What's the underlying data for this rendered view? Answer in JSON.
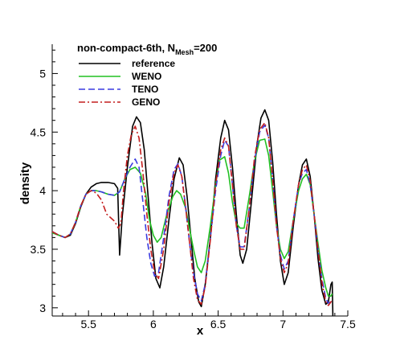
{
  "chart_data": {
    "type": "line",
    "xlabel": "x",
    "ylabel": "density",
    "xlim": [
      5.22,
      7.5
    ],
    "ylim": [
      2.93,
      5.25
    ],
    "x_ticks": [
      5.5,
      6,
      6.5,
      7,
      7.5
    ],
    "x_tick_labels": [
      "5.5",
      "6",
      "6.5",
      "7",
      "7.5"
    ],
    "y_ticks": [
      3,
      3.5,
      4,
      4.5,
      5
    ],
    "y_tick_labels": [
      "3",
      "3.5",
      "4",
      "4.5",
      "5"
    ],
    "grid": false,
    "legend": {
      "placement": "top-left",
      "title_main": "non-compact-6th, N",
      "title_sub": "Mesh",
      "title_tail": "=200"
    },
    "series": [
      {
        "name": "reference",
        "color": "#000000",
        "dash": "solid",
        "points": [
          [
            5.22,
            3.65
          ],
          [
            5.27,
            3.62
          ],
          [
            5.32,
            3.6
          ],
          [
            5.36,
            3.62
          ],
          [
            5.4,
            3.72
          ],
          [
            5.44,
            3.86
          ],
          [
            5.48,
            3.97
          ],
          [
            5.52,
            4.03
          ],
          [
            5.56,
            4.06
          ],
          [
            5.6,
            4.07
          ],
          [
            5.65,
            4.07
          ],
          [
            5.7,
            4.06
          ],
          [
            5.725,
            4.02
          ],
          [
            5.74,
            3.45
          ],
          [
            5.76,
            3.78
          ],
          [
            5.8,
            4.2
          ],
          [
            5.84,
            4.55
          ],
          [
            5.87,
            4.63
          ],
          [
            5.9,
            4.58
          ],
          [
            5.93,
            4.35
          ],
          [
            5.96,
            3.95
          ],
          [
            5.99,
            3.55
          ],
          [
            6.02,
            3.25
          ],
          [
            6.05,
            3.17
          ],
          [
            6.08,
            3.35
          ],
          [
            6.12,
            3.75
          ],
          [
            6.16,
            4.1
          ],
          [
            6.2,
            4.28
          ],
          [
            6.23,
            4.22
          ],
          [
            6.26,
            3.95
          ],
          [
            6.29,
            3.6
          ],
          [
            6.32,
            3.25
          ],
          [
            6.35,
            3.05
          ],
          [
            6.37,
            3.01
          ],
          [
            6.4,
            3.2
          ],
          [
            6.44,
            3.6
          ],
          [
            6.48,
            4.1
          ],
          [
            6.52,
            4.45
          ],
          [
            6.55,
            4.6
          ],
          [
            6.58,
            4.52
          ],
          [
            6.61,
            4.2
          ],
          [
            6.64,
            3.8
          ],
          [
            6.67,
            3.45
          ],
          [
            6.69,
            3.38
          ],
          [
            6.72,
            3.5
          ],
          [
            6.76,
            3.95
          ],
          [
            6.8,
            4.4
          ],
          [
            6.83,
            4.62
          ],
          [
            6.86,
            4.69
          ],
          [
            6.89,
            4.6
          ],
          [
            6.92,
            4.25
          ],
          [
            6.95,
            3.8
          ],
          [
            6.98,
            3.4
          ],
          [
            7.01,
            3.2
          ],
          [
            7.04,
            3.3
          ],
          [
            7.08,
            3.7
          ],
          [
            7.12,
            4.05
          ],
          [
            7.15,
            4.22
          ],
          [
            7.18,
            4.27
          ],
          [
            7.21,
            4.12
          ],
          [
            7.24,
            3.8
          ],
          [
            7.27,
            3.42
          ],
          [
            7.3,
            3.15
          ],
          [
            7.33,
            3.03
          ],
          [
            7.35,
            3.05
          ],
          [
            7.37,
            3.2
          ],
          [
            7.38,
            3.22
          ],
          [
            7.385,
            2.93
          ]
        ]
      },
      {
        "name": "WENO",
        "color": "#22c022",
        "dash": "solid",
        "points": [
          [
            5.22,
            3.64
          ],
          [
            5.27,
            3.62
          ],
          [
            5.32,
            3.6
          ],
          [
            5.36,
            3.63
          ],
          [
            5.4,
            3.73
          ],
          [
            5.44,
            3.87
          ],
          [
            5.48,
            3.97
          ],
          [
            5.52,
            4.0
          ],
          [
            5.56,
            4.0
          ],
          [
            5.6,
            3.99
          ],
          [
            5.65,
            3.97
          ],
          [
            5.7,
            3.96
          ],
          [
            5.74,
            3.99
          ],
          [
            5.78,
            4.1
          ],
          [
            5.82,
            4.18
          ],
          [
            5.86,
            4.2
          ],
          [
            5.9,
            4.15
          ],
          [
            5.94,
            3.98
          ],
          [
            5.97,
            3.75
          ],
          [
            6.0,
            3.62
          ],
          [
            6.03,
            3.56
          ],
          [
            6.06,
            3.6
          ],
          [
            6.1,
            3.78
          ],
          [
            6.15,
            3.95
          ],
          [
            6.18,
            4.0
          ],
          [
            6.21,
            3.97
          ],
          [
            6.25,
            3.85
          ],
          [
            6.28,
            3.67
          ],
          [
            6.31,
            3.5
          ],
          [
            6.34,
            3.35
          ],
          [
            6.37,
            3.3
          ],
          [
            6.4,
            3.4
          ],
          [
            6.44,
            3.7
          ],
          [
            6.48,
            4.05
          ],
          [
            6.51,
            4.26
          ],
          [
            6.55,
            4.29
          ],
          [
            6.58,
            4.15
          ],
          [
            6.61,
            3.9
          ],
          [
            6.64,
            3.72
          ],
          [
            6.67,
            3.68
          ],
          [
            6.7,
            3.68
          ],
          [
            6.74,
            3.95
          ],
          [
            6.78,
            4.25
          ],
          [
            6.82,
            4.43
          ],
          [
            6.86,
            4.44
          ],
          [
            6.89,
            4.3
          ],
          [
            6.92,
            4.0
          ],
          [
            6.95,
            3.7
          ],
          [
            6.98,
            3.5
          ],
          [
            7.01,
            3.42
          ],
          [
            7.04,
            3.48
          ],
          [
            7.08,
            3.75
          ],
          [
            7.12,
            4.0
          ],
          [
            7.15,
            4.1
          ],
          [
            7.18,
            4.14
          ],
          [
            7.21,
            4.05
          ],
          [
            7.24,
            3.8
          ],
          [
            7.27,
            3.55
          ],
          [
            7.3,
            3.32
          ],
          [
            7.33,
            3.17
          ],
          [
            7.35,
            3.1
          ],
          [
            7.37,
            3.1
          ],
          [
            7.38,
            3.12
          ]
        ]
      },
      {
        "name": "TENO",
        "color": "#3a3ae0",
        "dash": "8,4",
        "points": [
          [
            5.22,
            3.65
          ],
          [
            5.27,
            3.62
          ],
          [
            5.32,
            3.6
          ],
          [
            5.36,
            3.63
          ],
          [
            5.4,
            3.73
          ],
          [
            5.44,
            3.87
          ],
          [
            5.48,
            3.97
          ],
          [
            5.52,
            4.0
          ],
          [
            5.56,
            4.0
          ],
          [
            5.6,
            3.99
          ],
          [
            5.65,
            3.97
          ],
          [
            5.7,
            3.96
          ],
          [
            5.74,
            3.99
          ],
          [
            5.78,
            4.1
          ],
          [
            5.82,
            4.2
          ],
          [
            5.86,
            4.27
          ],
          [
            5.89,
            4.2
          ],
          [
            5.92,
            3.9
          ],
          [
            5.95,
            3.6
          ],
          [
            5.98,
            3.38
          ],
          [
            6.01,
            3.27
          ],
          [
            6.04,
            3.3
          ],
          [
            6.08,
            3.6
          ],
          [
            6.12,
            3.95
          ],
          [
            6.16,
            4.18
          ],
          [
            6.19,
            4.23
          ],
          [
            6.22,
            4.12
          ],
          [
            6.25,
            3.85
          ],
          [
            6.28,
            3.55
          ],
          [
            6.31,
            3.3
          ],
          [
            6.34,
            3.12
          ],
          [
            6.37,
            3.06
          ],
          [
            6.4,
            3.2
          ],
          [
            6.44,
            3.6
          ],
          [
            6.48,
            4.0
          ],
          [
            6.52,
            4.3
          ],
          [
            6.55,
            4.43
          ],
          [
            6.58,
            4.38
          ],
          [
            6.61,
            4.05
          ],
          [
            6.64,
            3.7
          ],
          [
            6.67,
            3.52
          ],
          [
            6.7,
            3.52
          ],
          [
            6.74,
            3.85
          ],
          [
            6.78,
            4.25
          ],
          [
            6.82,
            4.5
          ],
          [
            6.86,
            4.56
          ],
          [
            6.89,
            4.45
          ],
          [
            6.92,
            4.1
          ],
          [
            6.95,
            3.7
          ],
          [
            6.98,
            3.45
          ],
          [
            7.01,
            3.33
          ],
          [
            7.04,
            3.4
          ],
          [
            7.08,
            3.75
          ],
          [
            7.12,
            4.05
          ],
          [
            7.15,
            4.15
          ],
          [
            7.18,
            4.18
          ],
          [
            7.21,
            4.05
          ],
          [
            7.24,
            3.8
          ],
          [
            7.27,
            3.5
          ],
          [
            7.3,
            3.25
          ],
          [
            7.33,
            3.08
          ],
          [
            7.35,
            3.04
          ],
          [
            7.37,
            3.05
          ],
          [
            7.38,
            3.07
          ]
        ]
      },
      {
        "name": "GENO",
        "color": "#c41e1e",
        "dash": "8,3,2,3",
        "points": [
          [
            5.22,
            3.65
          ],
          [
            5.27,
            3.62
          ],
          [
            5.32,
            3.6
          ],
          [
            5.36,
            3.63
          ],
          [
            5.4,
            3.73
          ],
          [
            5.44,
            3.87
          ],
          [
            5.48,
            3.97
          ],
          [
            5.52,
            4.0
          ],
          [
            5.56,
            3.98
          ],
          [
            5.6,
            3.92
          ],
          [
            5.64,
            3.8
          ],
          [
            5.67,
            3.77
          ],
          [
            5.7,
            3.74
          ],
          [
            5.73,
            3.68
          ],
          [
            5.75,
            3.72
          ],
          [
            5.77,
            4.0
          ],
          [
            5.8,
            4.3
          ],
          [
            5.83,
            4.48
          ],
          [
            5.86,
            4.55
          ],
          [
            5.89,
            4.45
          ],
          [
            5.92,
            4.15
          ],
          [
            5.95,
            3.8
          ],
          [
            5.98,
            3.5
          ],
          [
            6.01,
            3.3
          ],
          [
            6.04,
            3.25
          ],
          [
            6.08,
            3.5
          ],
          [
            6.12,
            3.9
          ],
          [
            6.16,
            4.15
          ],
          [
            6.19,
            4.22
          ],
          [
            6.22,
            4.12
          ],
          [
            6.25,
            3.85
          ],
          [
            6.28,
            3.55
          ],
          [
            6.31,
            3.25
          ],
          [
            6.34,
            3.07
          ],
          [
            6.37,
            3.03
          ],
          [
            6.4,
            3.18
          ],
          [
            6.44,
            3.58
          ],
          [
            6.48,
            4.05
          ],
          [
            6.52,
            4.35
          ],
          [
            6.55,
            4.45
          ],
          [
            6.58,
            4.38
          ],
          [
            6.61,
            4.05
          ],
          [
            6.64,
            3.7
          ],
          [
            6.67,
            3.5
          ],
          [
            6.7,
            3.5
          ],
          [
            6.74,
            3.85
          ],
          [
            6.78,
            4.28
          ],
          [
            6.82,
            4.52
          ],
          [
            6.86,
            4.58
          ],
          [
            6.89,
            4.45
          ],
          [
            6.92,
            4.1
          ],
          [
            6.95,
            3.7
          ],
          [
            6.98,
            3.42
          ],
          [
            7.01,
            3.3
          ],
          [
            7.04,
            3.38
          ],
          [
            7.08,
            3.75
          ],
          [
            7.12,
            4.05
          ],
          [
            7.15,
            4.18
          ],
          [
            7.18,
            4.22
          ],
          [
            7.21,
            4.08
          ],
          [
            7.24,
            3.8
          ],
          [
            7.27,
            3.5
          ],
          [
            7.3,
            3.22
          ],
          [
            7.33,
            3.05
          ],
          [
            7.35,
            3.02
          ],
          [
            7.37,
            3.05
          ],
          [
            7.38,
            3.07
          ]
        ]
      }
    ]
  }
}
